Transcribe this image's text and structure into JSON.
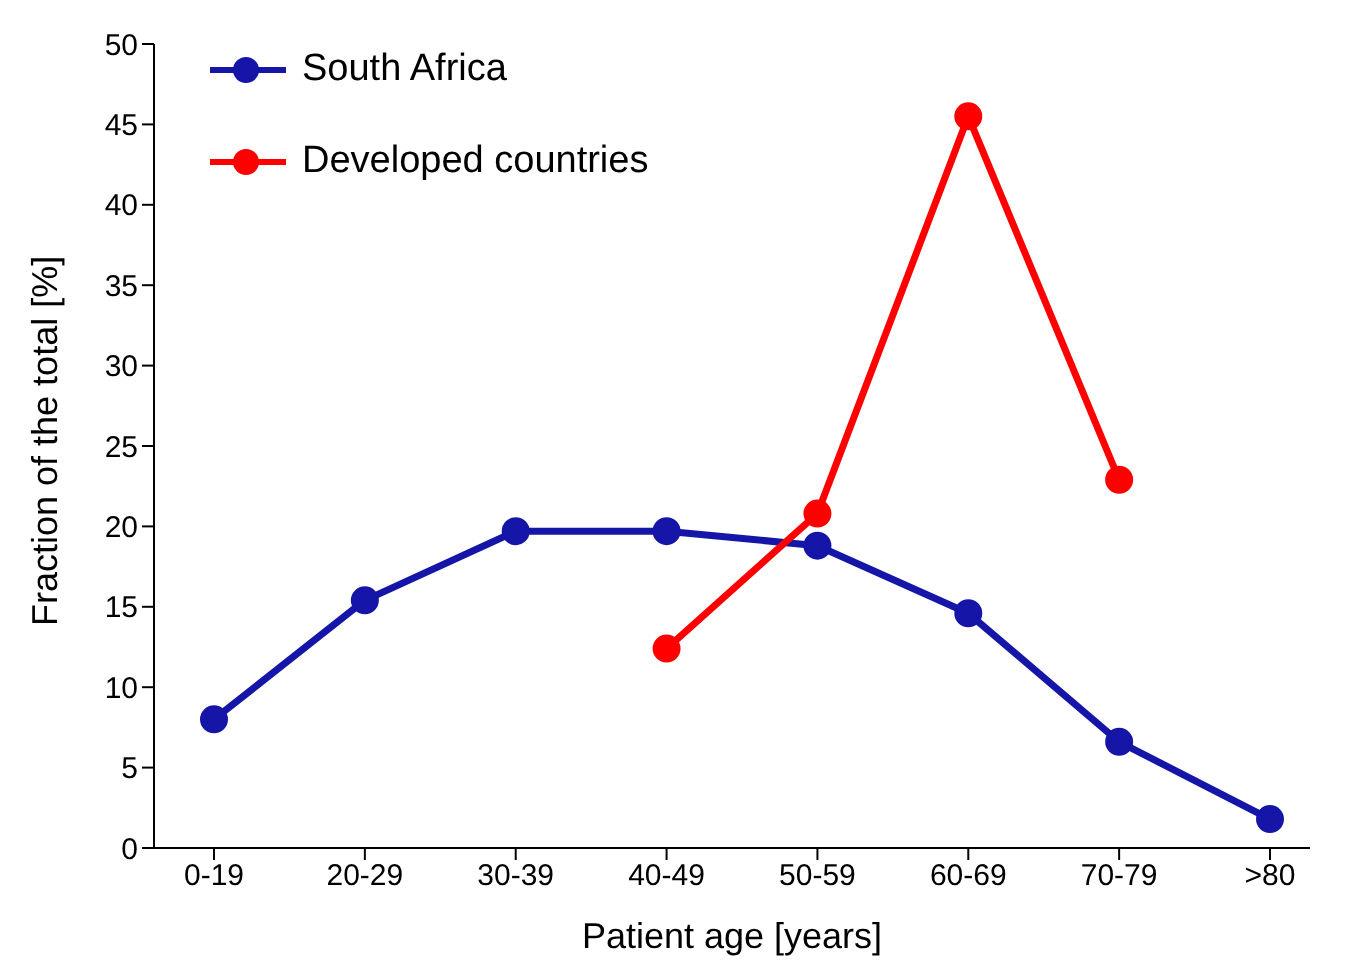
{
  "chart_data": {
    "type": "line",
    "xlabel": "Patient age [years]",
    "ylabel": "Fraction of the total [%]",
    "categories": [
      "0-19",
      "20-29",
      "30-39",
      "40-49",
      "50-59",
      "60-69",
      "70-79",
      ">80"
    ],
    "series": [
      {
        "name": "South Africa",
        "color": "#1515a8",
        "values": [
          8.0,
          15.4,
          19.7,
          19.7,
          18.8,
          14.6,
          6.6,
          1.8
        ]
      },
      {
        "name": "Developed countries",
        "color": "#ff0000",
        "values": [
          null,
          null,
          null,
          12.4,
          20.8,
          45.5,
          22.9,
          null
        ]
      }
    ],
    "ylim": [
      0,
      50
    ],
    "yticks": [
      0,
      5,
      10,
      15,
      20,
      25,
      30,
      35,
      40,
      45,
      50
    ],
    "grid": false,
    "legend": "top left",
    "marker": "circle",
    "line_style": "solid"
  }
}
